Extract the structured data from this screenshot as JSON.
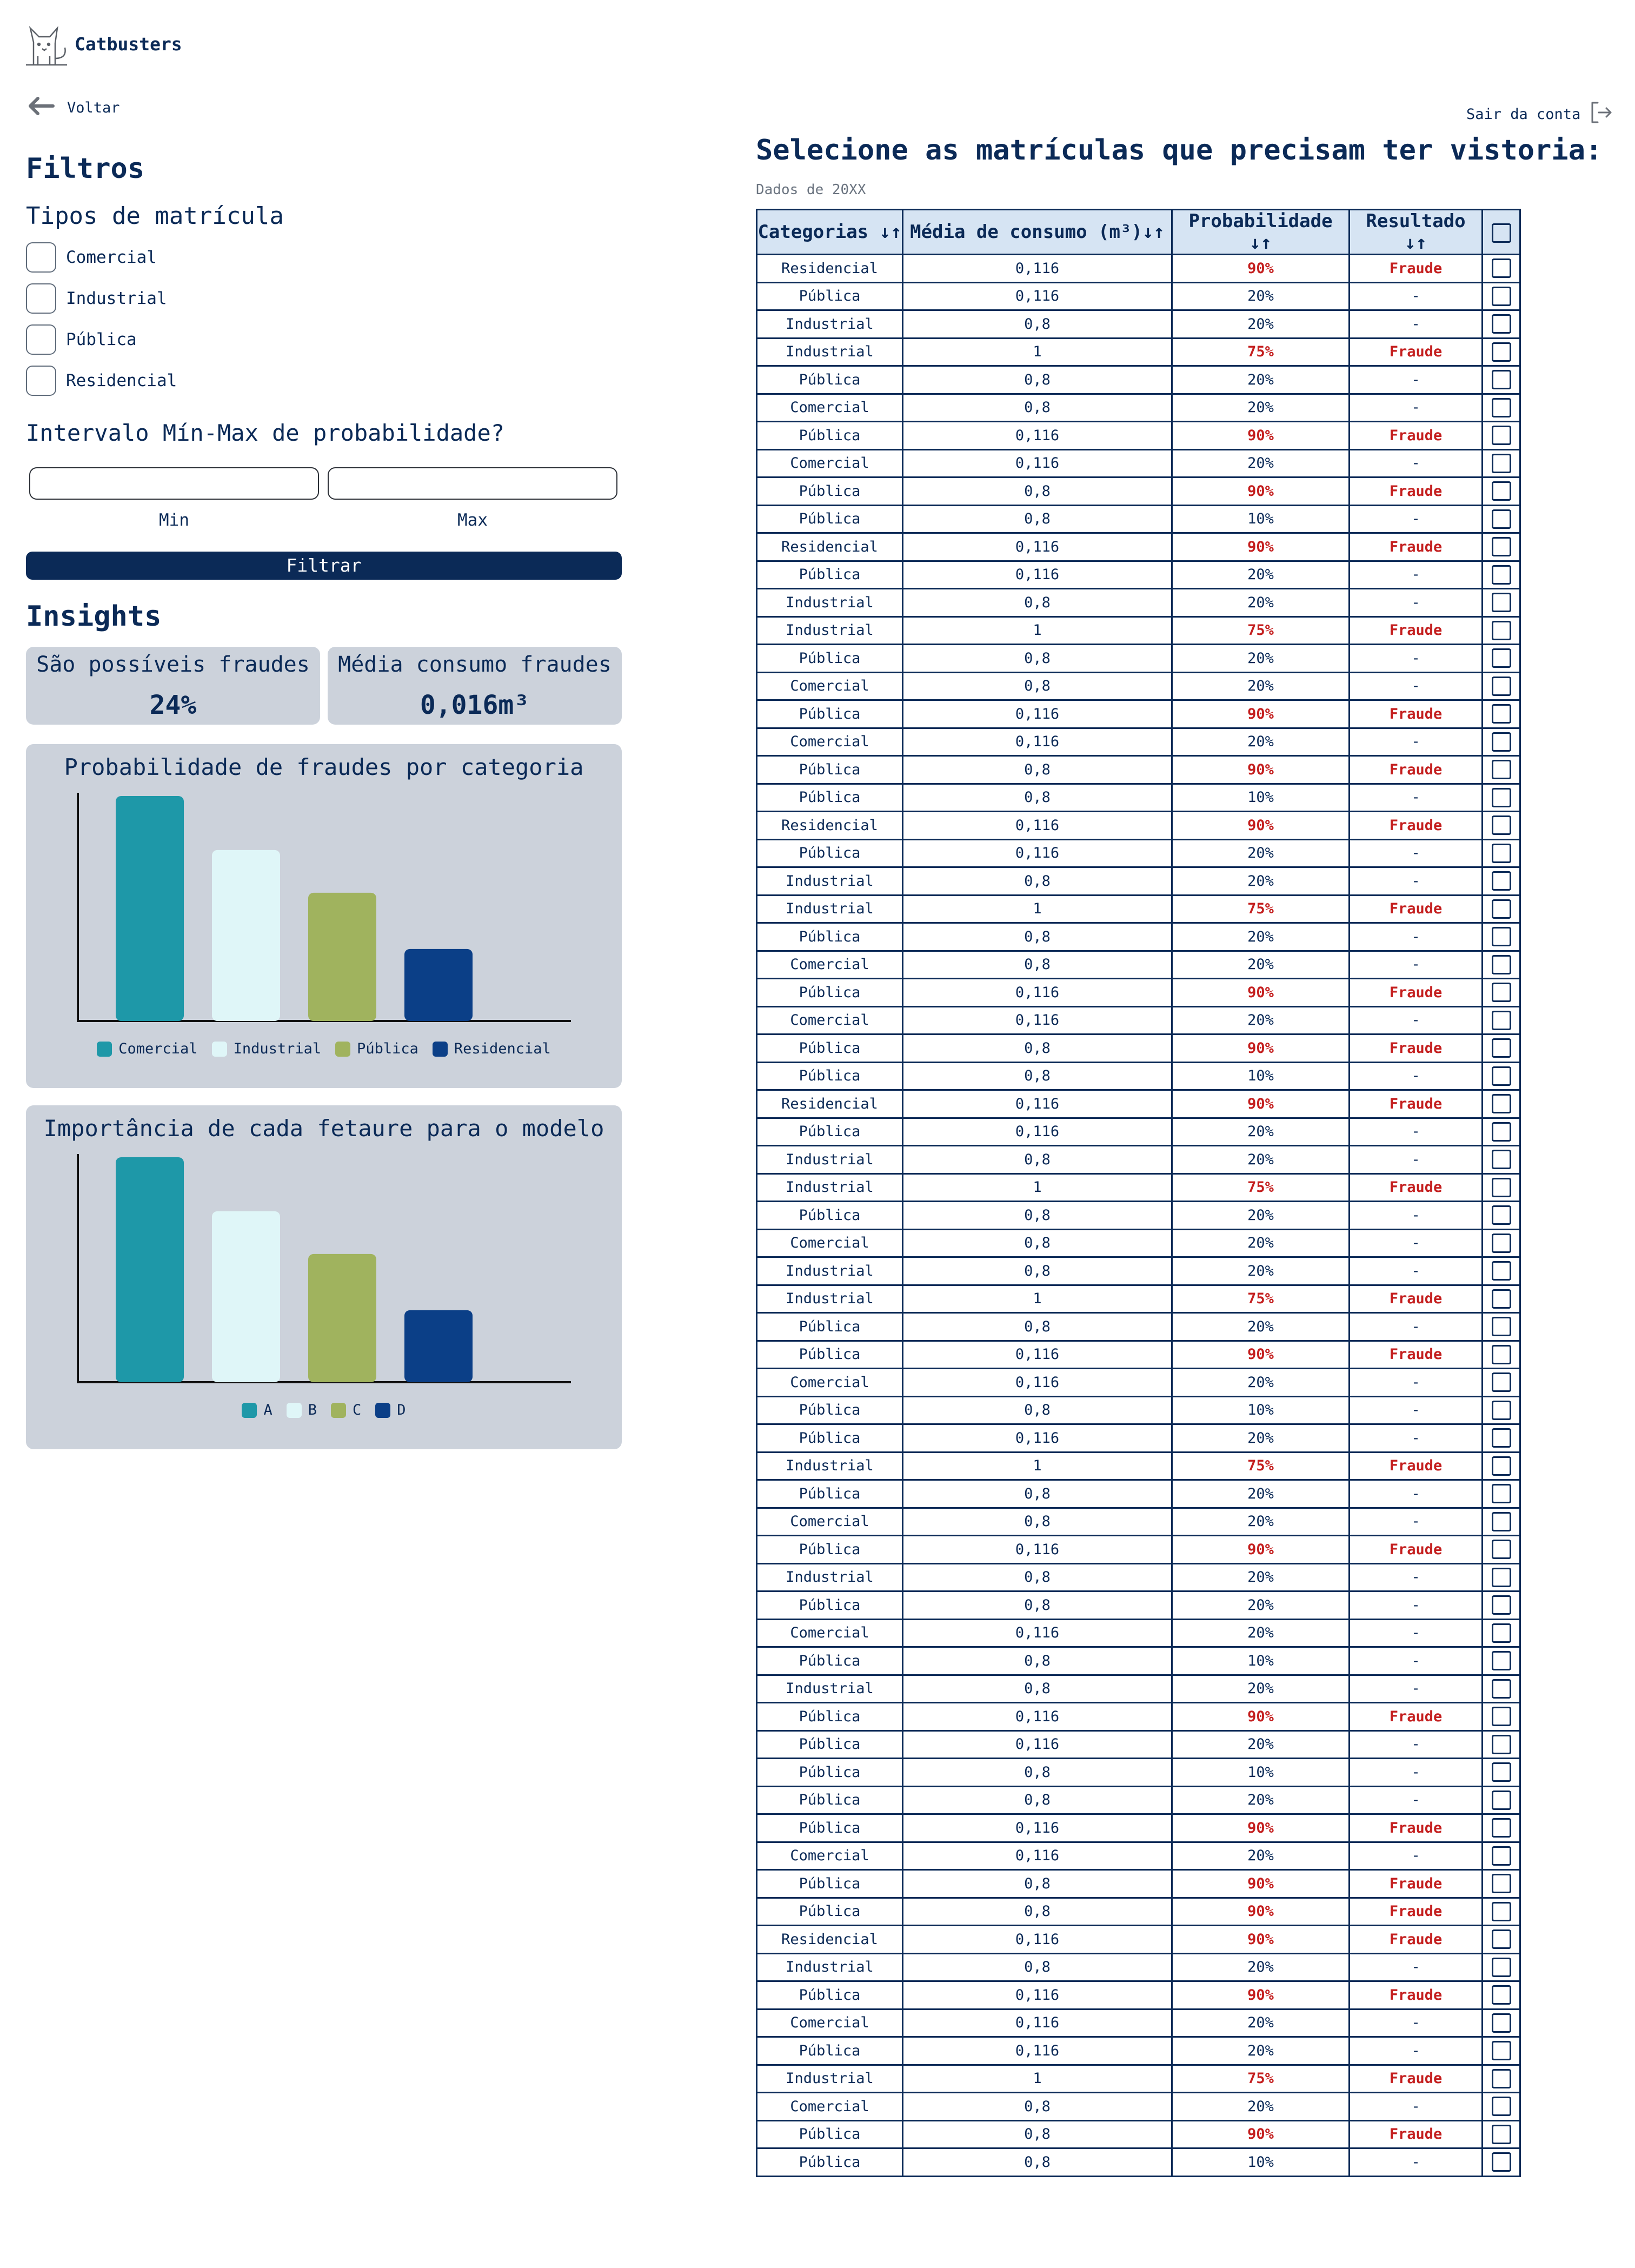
{
  "header": {
    "brand": "Catbusters",
    "back_label": "Voltar",
    "logout_label": "Sair da conta",
    "logo_icon": "cat-icon"
  },
  "filters": {
    "title": "Filtros",
    "types_title": "Tipos de matrícula",
    "types": [
      "Comercial",
      "Industrial",
      "Pública",
      "Residencial"
    ],
    "range_title": "Intervalo Mín-Max de probabilidade?",
    "min_label": "Min",
    "max_label": "Max",
    "min_value": "",
    "max_value": "",
    "button_label": "Filtrar"
  },
  "insights": {
    "title": "Insights",
    "cards": [
      {
        "title": "São possíveis fraudes",
        "value": "24%"
      },
      {
        "title": "Média consumo fraudes",
        "value": "0,016m³"
      }
    ]
  },
  "chart_data": [
    {
      "type": "bar",
      "title": "Probabilidade de fraudes por categoria",
      "categories": [
        "Comercial",
        "Industrial",
        "Pública",
        "Residencial"
      ],
      "values": [
        100,
        76,
        57,
        32
      ],
      "colors": [
        "#1e98a8",
        "#dff6f8",
        "#a0b35e",
        "#0b3f87"
      ],
      "ylim": [
        0,
        100
      ],
      "grid": false,
      "legend": "bottom"
    },
    {
      "type": "bar",
      "title": "Importância de cada fetaure para o modelo",
      "categories": [
        "A",
        "B",
        "C",
        "D"
      ],
      "values": [
        100,
        76,
        57,
        32
      ],
      "colors": [
        "#1e98a8",
        "#dff6f8",
        "#a0b35e",
        "#0b3f87"
      ],
      "ylim": [
        0,
        100
      ],
      "grid": false,
      "legend": "bottom"
    }
  ],
  "main": {
    "title": "Selecione as matrículas que precisam ter vistoria:",
    "subtitle": "Dados de 20XX",
    "columns": [
      "Categorias ↓↑",
      "Média de consumo (m³)↓↑",
      "Probabilidade ↓↑",
      "Resultado ↓↑"
    ],
    "rows": [
      [
        "Residencial",
        "0,116",
        "90%",
        "Fraude"
      ],
      [
        "Pública",
        "0,116",
        "20%",
        "-"
      ],
      [
        "Industrial",
        "0,8",
        "20%",
        "-"
      ],
      [
        "Industrial",
        "1",
        "75%",
        "Fraude"
      ],
      [
        "Pública",
        "0,8",
        "20%",
        "-"
      ],
      [
        "Comercial",
        "0,8",
        "20%",
        "-"
      ],
      [
        "Pública",
        "0,116",
        "90%",
        "Fraude"
      ],
      [
        "Comercial",
        "0,116",
        "20%",
        "-"
      ],
      [
        "Pública",
        "0,8",
        "90%",
        "Fraude"
      ],
      [
        "Pública",
        "0,8",
        "10%",
        "-"
      ],
      [
        "Residencial",
        "0,116",
        "90%",
        "Fraude"
      ],
      [
        "Pública",
        "0,116",
        "20%",
        "-"
      ],
      [
        "Industrial",
        "0,8",
        "20%",
        "-"
      ],
      [
        "Industrial",
        "1",
        "75%",
        "Fraude"
      ],
      [
        "Pública",
        "0,8",
        "20%",
        "-"
      ],
      [
        "Comercial",
        "0,8",
        "20%",
        "-"
      ],
      [
        "Pública",
        "0,116",
        "90%",
        "Fraude"
      ],
      [
        "Comercial",
        "0,116",
        "20%",
        "-"
      ],
      [
        "Pública",
        "0,8",
        "90%",
        "Fraude"
      ],
      [
        "Pública",
        "0,8",
        "10%",
        "-"
      ],
      [
        "Residencial",
        "0,116",
        "90%",
        "Fraude"
      ],
      [
        "Pública",
        "0,116",
        "20%",
        "-"
      ],
      [
        "Industrial",
        "0,8",
        "20%",
        "-"
      ],
      [
        "Industrial",
        "1",
        "75%",
        "Fraude"
      ],
      [
        "Pública",
        "0,8",
        "20%",
        "-"
      ],
      [
        "Comercial",
        "0,8",
        "20%",
        "-"
      ],
      [
        "Pública",
        "0,116",
        "90%",
        "Fraude"
      ],
      [
        "Comercial",
        "0,116",
        "20%",
        "-"
      ],
      [
        "Pública",
        "0,8",
        "90%",
        "Fraude"
      ],
      [
        "Pública",
        "0,8",
        "10%",
        "-"
      ],
      [
        "Residencial",
        "0,116",
        "90%",
        "Fraude"
      ],
      [
        "Pública",
        "0,116",
        "20%",
        "-"
      ],
      [
        "Industrial",
        "0,8",
        "20%",
        "-"
      ],
      [
        "Industrial",
        "1",
        "75%",
        "Fraude"
      ],
      [
        "Pública",
        "0,8",
        "20%",
        "-"
      ],
      [
        "Comercial",
        "0,8",
        "20%",
        "-"
      ],
      [
        "Industrial",
        "0,8",
        "20%",
        "-"
      ],
      [
        "Industrial",
        "1",
        "75%",
        "Fraude"
      ],
      [
        "Pública",
        "0,8",
        "20%",
        "-"
      ],
      [
        "Pública",
        "0,116",
        "90%",
        "Fraude"
      ],
      [
        "Comercial",
        "0,116",
        "20%",
        "-"
      ],
      [
        "Pública",
        "0,8",
        "10%",
        "-"
      ],
      [
        "Pública",
        "0,116",
        "20%",
        "-"
      ],
      [
        "Industrial",
        "1",
        "75%",
        "Fraude"
      ],
      [
        "Pública",
        "0,8",
        "20%",
        "-"
      ],
      [
        "Comercial",
        "0,8",
        "20%",
        "-"
      ],
      [
        "Pública",
        "0,116",
        "90%",
        "Fraude"
      ],
      [
        "Industrial",
        "0,8",
        "20%",
        "-"
      ],
      [
        "Pública",
        "0,8",
        "20%",
        "-"
      ],
      [
        "Comercial",
        "0,116",
        "20%",
        "-"
      ],
      [
        "Pública",
        "0,8",
        "10%",
        "-"
      ],
      [
        "Industrial",
        "0,8",
        "20%",
        "-"
      ],
      [
        "Pública",
        "0,116",
        "90%",
        "Fraude"
      ],
      [
        "Pública",
        "0,116",
        "20%",
        "-"
      ],
      [
        "Pública",
        "0,8",
        "10%",
        "-"
      ],
      [
        "Pública",
        "0,8",
        "20%",
        "-"
      ],
      [
        "Pública",
        "0,116",
        "90%",
        "Fraude"
      ],
      [
        "Comercial",
        "0,116",
        "20%",
        "-"
      ],
      [
        "Pública",
        "0,8",
        "90%",
        "Fraude"
      ],
      [
        "Pública",
        "0,8",
        "90%",
        "Fraude"
      ],
      [
        "Residencial",
        "0,116",
        "90%",
        "Fraude"
      ],
      [
        "Industrial",
        "0,8",
        "20%",
        "-"
      ],
      [
        "Pública",
        "0,116",
        "90%",
        "Fraude"
      ],
      [
        "Comercial",
        "0,116",
        "20%",
        "-"
      ],
      [
        "Pública",
        "0,116",
        "20%",
        "-"
      ],
      [
        "Industrial",
        "1",
        "75%",
        "Fraude"
      ],
      [
        "Comercial",
        "0,8",
        "20%",
        "-"
      ],
      [
        "Pública",
        "0,8",
        "90%",
        "Fraude"
      ],
      [
        "Pública",
        "0,8",
        "10%",
        "-"
      ]
    ],
    "highlight_color": "#c41f1f",
    "accent": "#0b2a57"
  }
}
